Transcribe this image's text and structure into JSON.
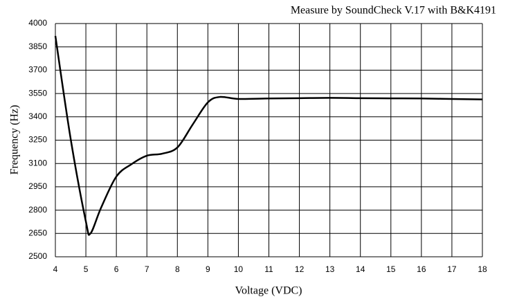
{
  "chart_data": {
    "type": "line",
    "title": "Measure by SoundCheck V.17 with B&K4191",
    "xlabel": "Voltage (VDC)",
    "ylabel": "Frequency (Hz)",
    "x": [
      4,
      4.5,
      5,
      5.15,
      5.5,
      6,
      6.5,
      7,
      7.5,
      8,
      8.5,
      9,
      9.4,
      10,
      11,
      12,
      13,
      14,
      15,
      16,
      17,
      18
    ],
    "series": [
      {
        "name": "Frequency",
        "color": "#000000",
        "values": [
          3920,
          3260,
          2727,
          2650,
          2816,
          3016,
          3096,
          3150,
          3163,
          3203,
          3350,
          3493,
          3528,
          3515,
          3518,
          3520,
          3522,
          3520,
          3519,
          3518,
          3515,
          3512
        ]
      }
    ],
    "xlim": [
      4,
      18
    ],
    "xticks": [
      4,
      5,
      6,
      7,
      8,
      9,
      10,
      11,
      12,
      13,
      14,
      15,
      16,
      17,
      18
    ],
    "ylim": [
      2500,
      4000
    ],
    "yticks": [
      2500,
      2650,
      2800,
      2950,
      3100,
      3250,
      3400,
      3550,
      3700,
      3850,
      4000
    ],
    "grid": true
  }
}
